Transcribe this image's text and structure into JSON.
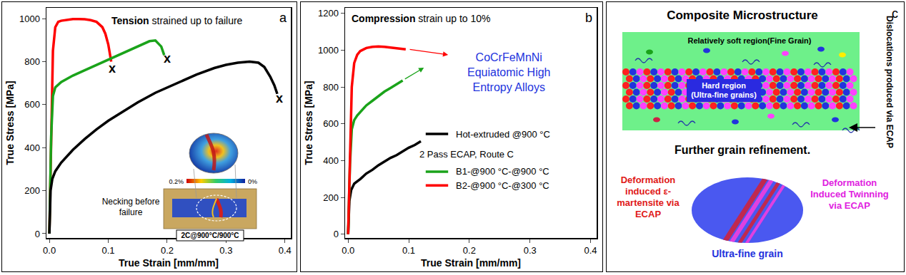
{
  "chart_data": [
    {
      "type": "line",
      "panel_label": "a",
      "title": "Tension strained up to failure",
      "x_label": "True Strain [mm/mm]",
      "y_label": "True Stress [MPa]",
      "xlim": [
        -0.005,
        0.41
      ],
      "ylim": [
        -20,
        1050
      ],
      "xticks": [
        {
          "value": 0,
          "label": "0.0"
        },
        {
          "value": 0.1,
          "label": "0.1"
        },
        {
          "value": 0.2,
          "label": "0.2"
        },
        {
          "value": 0.3,
          "label": "0.3"
        },
        {
          "value": 0.4,
          "label": "0.4"
        }
      ],
      "yticks": [
        0,
        200,
        400,
        600,
        800,
        1000
      ],
      "grid": false,
      "series": [
        {
          "color": "#ff0000",
          "x": [
            0,
            0.003,
            0.006,
            0.01,
            0.015,
            0.02,
            0.03,
            0.04,
            0.05,
            0.06,
            0.07,
            0.08,
            0.09,
            0.095,
            0.1,
            0.103,
            0.105
          ],
          "values": [
            0,
            500,
            850,
            960,
            985,
            990,
            995,
            998,
            998,
            997,
            993,
            985,
            960,
            930,
            880,
            830,
            800
          ]
        },
        {
          "color": "#1aa31a",
          "x": [
            0,
            0.003,
            0.006,
            0.01,
            0.02,
            0.04,
            0.06,
            0.08,
            0.1,
            0.12,
            0.14,
            0.16,
            0.17,
            0.18,
            0.19,
            0.195
          ],
          "values": [
            0,
            450,
            640,
            680,
            705,
            735,
            760,
            785,
            810,
            835,
            860,
            885,
            895,
            898,
            870,
            830
          ]
        },
        {
          "color": "#000000",
          "x": [
            0,
            0.002,
            0.005,
            0.01,
            0.02,
            0.04,
            0.06,
            0.08,
            0.1,
            0.12,
            0.15,
            0.18,
            0.2,
            0.22,
            0.25,
            0.28,
            0.3,
            0.32,
            0.34,
            0.355,
            0.365,
            0.375,
            0.382,
            0.387
          ],
          "values": [
            0,
            200,
            255,
            290,
            330,
            390,
            440,
            485,
            525,
            560,
            610,
            655,
            680,
            705,
            740,
            770,
            785,
            795,
            800,
            795,
            775,
            730,
            690,
            650
          ]
        }
      ],
      "annotations": [
        {
          "text": "x",
          "x": 0.107,
          "y": 770
        },
        {
          "text": "x",
          "x": 0.2,
          "y": 815
        },
        {
          "text": "x",
          "x": 0.39,
          "y": 630
        }
      ],
      "inset": {
        "colorbar_labels": [
          "0.2%",
          "0%"
        ],
        "caption": [
          "Necking before",
          "failure"
        ],
        "specimen_label": "2C@900°C/900°C"
      }
    },
    {
      "type": "line",
      "panel_label": "b",
      "title": "Compression strain up to 10%",
      "x_label": "True Strain [mm/mm]",
      "y_label": "True Stress [MPa]",
      "xlim": [
        -0.005,
        0.41
      ],
      "ylim": [
        -20,
        1230
      ],
      "xticks": [
        {
          "value": 0,
          "label": "0.0"
        },
        {
          "value": 0.1,
          "label": "0.1"
        },
        {
          "value": 0.2,
          "label": "0.2"
        },
        {
          "value": 0.3,
          "label": "0.3"
        },
        {
          "value": 0.4,
          "label": "0.4"
        }
      ],
      "yticks": [
        0,
        200,
        400,
        600,
        800,
        1000,
        1200
      ],
      "grid": false,
      "legend_title": "2 Pass ECAP, Route C",
      "note": [
        "CoCrFeMnNi",
        "Equiatomic High",
        "Entropy Alloys"
      ],
      "series": [
        {
          "name": "Hot-extruded @900 °C",
          "color": "#000000",
          "x": [
            0,
            0.002,
            0.005,
            0.01,
            0.02,
            0.03,
            0.04,
            0.05,
            0.06,
            0.07,
            0.08,
            0.09,
            0.1,
            0.11,
            0.12
          ],
          "values": [
            0,
            180,
            240,
            275,
            300,
            330,
            350,
            375,
            395,
            415,
            430,
            450,
            470,
            485,
            505
          ]
        },
        {
          "name": "B1-@900 °C-@900 °C",
          "color": "#1aa31a",
          "x": [
            0,
            0.003,
            0.006,
            0.01,
            0.015,
            0.02,
            0.03,
            0.04,
            0.05,
            0.06,
            0.07,
            0.08,
            0.09
          ],
          "values": [
            0,
            380,
            570,
            620,
            645,
            665,
            700,
            725,
            750,
            775,
            795,
            815,
            835
          ]
        },
        {
          "name": "B2-@900 °C-@300 °C",
          "color": "#ff0000",
          "x": [
            0,
            0.003,
            0.006,
            0.01,
            0.015,
            0.02,
            0.03,
            0.04,
            0.05,
            0.06,
            0.07,
            0.08,
            0.09,
            0.095
          ],
          "values": [
            0,
            450,
            800,
            930,
            975,
            995,
            1012,
            1018,
            1020,
            1018,
            1015,
            1012,
            1008,
            1005
          ]
        }
      ]
    }
  ],
  "panel_c": {
    "label": "c",
    "title": "Composite Microstructure",
    "soft_region": "Relatively soft region(Fine Grain)",
    "hard_region": [
      "Hard region",
      "(Ultra-fine grains)"
    ],
    "dislocations": "Dislocations produced via ECAP",
    "refinement": "Further grain refinement.",
    "martensite": [
      "Deformation",
      "induced ε-",
      "martensite via",
      "ECAP"
    ],
    "twinning": [
      "Deformation",
      "Induced Twinning",
      "via ECAP"
    ],
    "grain": "Ultra-fine grain"
  }
}
